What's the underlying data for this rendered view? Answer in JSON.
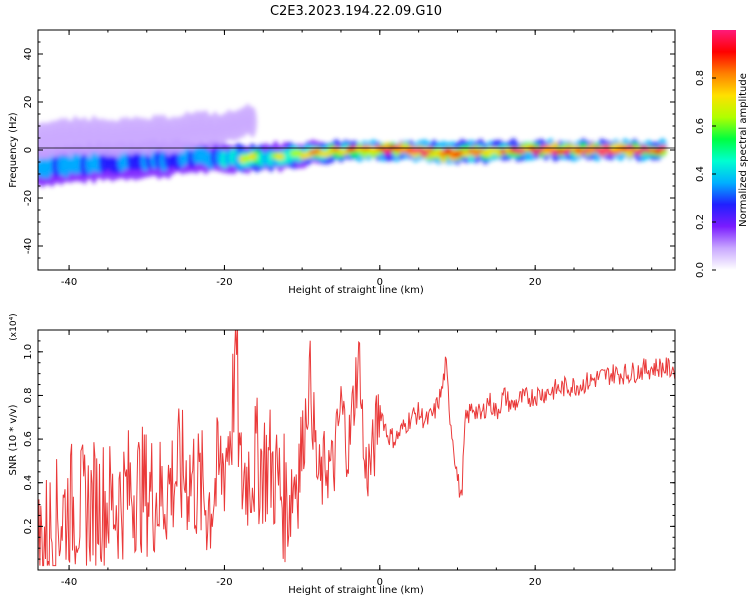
{
  "title": "C2E3.2023.194.22.09.G10",
  "chart_data": [
    {
      "type": "heatmap",
      "xlabel": "Height of straight line (km)",
      "ylabel": "Frequency (Hz)",
      "xlim": [
        -44,
        38
      ],
      "ylim": [
        -50,
        50
      ],
      "x_ticks": [
        -40,
        -20,
        0,
        20
      ],
      "x_tick_labels": [
        "-40",
        "-20",
        "0",
        "20"
      ],
      "y_ticks": [
        -40,
        -20,
        0,
        20,
        40
      ],
      "y_tick_labels": [
        "-40",
        "-20",
        "0",
        "20",
        "40"
      ],
      "colorbar": {
        "label": "Normalized spectral amplitude",
        "range": [
          0,
          1
        ],
        "ticks": [
          0.0,
          0.2,
          0.4,
          0.6,
          0.8
        ],
        "tick_labels": [
          "0.0",
          "0.2",
          "0.4",
          "0.6",
          "0.8"
        ],
        "colors": [
          "#ffffff",
          "#c9a8ff",
          "#7a1cff",
          "#2020ff",
          "#00b0ff",
          "#00ffd0",
          "#00ff40",
          "#b0ff00",
          "#ffe000",
          "#ff8000",
          "#ff0000",
          "#ff1a7a"
        ]
      },
      "ridges": [
        {
          "x": [
            -44,
            -40,
            -36,
            -32,
            -28,
            -24,
            -20,
            -16,
            -12,
            -8,
            -4,
            0,
            4,
            8,
            12,
            16,
            20,
            24,
            28,
            32,
            37
          ],
          "freq": [
            -7,
            -6,
            -5,
            -4,
            -3.5,
            -3,
            -3.5,
            -3,
            -2.5,
            -1,
            0,
            0,
            0,
            -1.5,
            -1,
            0,
            0,
            0,
            0,
            0,
            0
          ],
          "amp": [
            0.45,
            0.5,
            0.5,
            0.45,
            0.5,
            0.45,
            0.55,
            0.7,
            0.6,
            0.7,
            0.85,
            0.9,
            0.95,
            0.9,
            0.85,
            0.8,
            0.9,
            0.95,
            0.95,
            0.95,
            0.95
          ],
          "width": [
            5,
            5,
            5,
            5,
            5,
            4,
            4,
            3.5,
            3.5,
            3,
            2.5,
            2.5,
            2.5,
            3,
            3,
            2.5,
            2.5,
            2.5,
            2.5,
            2.5,
            2.5
          ]
        },
        {
          "x": [
            -44,
            -40,
            -36,
            -32,
            -28,
            -24,
            -20,
            -16
          ],
          "freq": [
            4,
            5,
            6,
            5,
            6,
            8,
            9,
            13
          ],
          "amp": [
            0.25,
            0.3,
            0.3,
            0.25,
            0.3,
            0.3,
            0.25,
            0.25
          ],
          "width": [
            5,
            5,
            5,
            5,
            5,
            5,
            4,
            4
          ]
        }
      ]
    },
    {
      "type": "line",
      "xlabel": "Height of straight line (km)",
      "ylabel": "SNR (10 * v/v)",
      "y_multiplier": "(x10⁴)",
      "xlim": [
        -44,
        38
      ],
      "ylim": [
        0,
        1.1
      ],
      "x_ticks": [
        -40,
        -20,
        0,
        20
      ],
      "x_tick_labels": [
        "-40",
        "-20",
        "0",
        "20"
      ],
      "y_ticks": [
        0.2,
        0.4,
        0.6,
        0.8,
        1.0
      ],
      "y_tick_labels": [
        "0.2",
        "0.4",
        "0.6",
        "0.8",
        "1.0"
      ],
      "series": [
        {
          "color": "#ea3a3a",
          "x": [
            -44,
            -42,
            -40,
            -38,
            -36,
            -34,
            -32,
            -30,
            -28,
            -26,
            -24,
            -22,
            -20,
            -19,
            -18.5,
            -18,
            -16,
            -14,
            -12,
            -10,
            -9,
            -8,
            -7.5,
            -7,
            -6,
            -5,
            -4,
            -3,
            -2.5,
            -2,
            -1,
            0,
            1,
            2,
            3,
            4,
            5,
            6,
            7,
            8,
            8.5,
            9,
            10,
            10.5,
            11,
            12,
            13,
            14,
            15,
            16,
            17,
            18,
            20,
            22,
            24,
            26,
            28,
            30,
            32,
            34,
            36,
            38
          ],
          "y": [
            0.12,
            0.2,
            0.3,
            0.28,
            0.32,
            0.3,
            0.38,
            0.36,
            0.34,
            0.45,
            0.42,
            0.3,
            0.5,
            0.7,
            1.1,
            0.4,
            0.5,
            0.48,
            0.3,
            0.55,
            0.9,
            0.42,
            0.4,
            0.5,
            0.45,
            0.75,
            0.55,
            0.9,
            0.95,
            0.45,
            0.5,
            0.75,
            0.62,
            0.6,
            0.65,
            0.7,
            0.72,
            0.68,
            0.72,
            0.82,
            0.95,
            0.72,
            0.42,
            0.32,
            0.68,
            0.75,
            0.7,
            0.78,
            0.72,
            0.8,
            0.75,
            0.78,
            0.8,
            0.82,
            0.84,
            0.85,
            0.88,
            0.9,
            0.9,
            0.92,
            0.93,
            0.92
          ]
        }
      ]
    }
  ]
}
